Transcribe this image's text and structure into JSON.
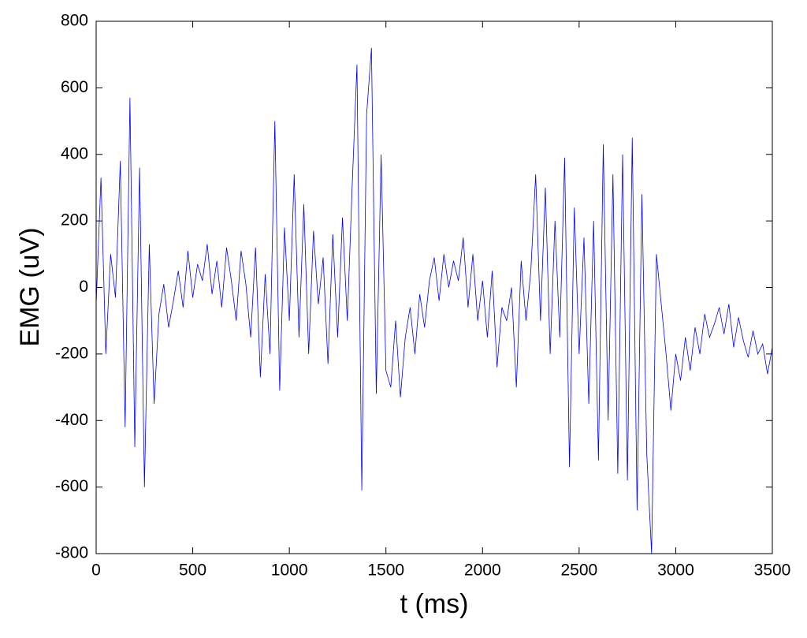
{
  "chart_data": {
    "type": "line",
    "x_label": "t (ms)",
    "y_label": "EMG (uV)",
    "x": [
      0,
      25,
      50,
      75,
      100,
      125,
      150,
      175,
      200,
      225,
      250,
      275,
      300,
      325,
      350,
      375,
      400,
      425,
      450,
      475,
      500,
      525,
      550,
      575,
      600,
      625,
      650,
      675,
      700,
      725,
      750,
      775,
      800,
      825,
      850,
      875,
      900,
      925,
      950,
      975,
      1000,
      1025,
      1050,
      1075,
      1100,
      1125,
      1150,
      1175,
      1200,
      1225,
      1250,
      1275,
      1300,
      1325,
      1350,
      1375,
      1400,
      1425,
      1450,
      1475,
      1500,
      1525,
      1550,
      1575,
      1600,
      1625,
      1650,
      1675,
      1700,
      1725,
      1750,
      1775,
      1800,
      1825,
      1850,
      1875,
      1900,
      1925,
      1950,
      1975,
      2000,
      2025,
      2050,
      2075,
      2100,
      2125,
      2150,
      2175,
      2200,
      2225,
      2250,
      2275,
      2300,
      2325,
      2350,
      2375,
      2400,
      2425,
      2450,
      2475,
      2500,
      2525,
      2550,
      2575,
      2600,
      2625,
      2650,
      2675,
      2700,
      2725,
      2750,
      2775,
      2800,
      2825,
      2850,
      2875,
      2900,
      2925,
      2950,
      2975,
      3000,
      3025,
      3050,
      3075,
      3100,
      3125,
      3150,
      3175,
      3200,
      3225,
      3250,
      3275,
      3300,
      3325,
      3350,
      3375,
      3400,
      3425,
      3450,
      3475,
      3500
    ],
    "values": [
      -50,
      330,
      -200,
      100,
      -30,
      380,
      -420,
      570,
      -480,
      360,
      -600,
      130,
      -350,
      -80,
      10,
      -120,
      -40,
      50,
      -60,
      110,
      -30,
      70,
      20,
      130,
      -20,
      80,
      -60,
      120,
      20,
      -100,
      110,
      10,
      -150,
      120,
      -270,
      40,
      -200,
      500,
      -310,
      180,
      -100,
      340,
      -150,
      250,
      -200,
      170,
      -50,
      90,
      -230,
      160,
      -150,
      210,
      -100,
      300,
      670,
      -610,
      520,
      720,
      -320,
      400,
      -250,
      -300,
      -100,
      -330,
      -150,
      -60,
      -200,
      -20,
      -120,
      20,
      90,
      -40,
      100,
      0,
      80,
      20,
      150,
      -60,
      100,
      -100,
      20,
      -150,
      50,
      -240,
      -60,
      -100,
      0,
      -300,
      80,
      -100,
      50,
      340,
      -100,
      300,
      -200,
      200,
      -150,
      390,
      -540,
      240,
      -200,
      150,
      -350,
      200,
      -520,
      430,
      -400,
      340,
      -560,
      400,
      -580,
      450,
      -670,
      280,
      -500,
      -800,
      100,
      -50,
      -200,
      -370,
      -200,
      -280,
      -150,
      -250,
      -120,
      -200,
      -80,
      -150,
      -110,
      -60,
      -140,
      -50,
      -180,
      -90,
      -160,
      -210,
      -130,
      -200,
      -170,
      -260,
      -180
    ],
    "color": "#0000ff",
    "xlim": [
      0,
      3500
    ],
    "xticks": [
      0,
      500,
      1000,
      1500,
      2000,
      2500,
      3000,
      3500
    ],
    "ylim": [
      -800,
      800
    ],
    "yticks": [
      -800,
      -600,
      -400,
      -200,
      0,
      200,
      400,
      600,
      800
    ],
    "grid": false
  }
}
